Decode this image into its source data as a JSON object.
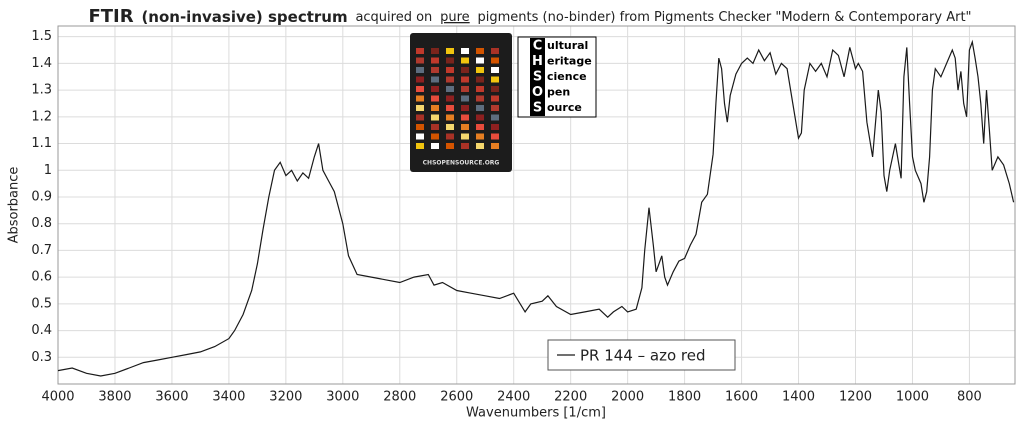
{
  "chart_data": {
    "type": "line",
    "title": [
      "FTIR",
      "(non-invasive) spectrum",
      "acquired on",
      "pure",
      "pigments (no-binder) from Pigments Checker \"Modern & Contemporary Art\""
    ],
    "xlabel": "Wavenumbers [1/cm]",
    "ylabel": "Absorbance",
    "logo": {
      "letters": [
        "C",
        "H",
        "S",
        "O",
        "S"
      ],
      "words": [
        "ultural",
        "eritage",
        "cience",
        "pen",
        "ource"
      ],
      "card": "CHSOPENSOURCE.ORG"
    },
    "xlim": [
      4000,
      640
    ],
    "ylim": [
      0.2,
      1.54
    ],
    "xticks": [
      4000,
      3800,
      3600,
      3400,
      3200,
      3000,
      2800,
      2600,
      2400,
      2200,
      2000,
      1800,
      1600,
      1400,
      1200,
      1000,
      800
    ],
    "yticks": [
      0.3,
      0.4,
      0.5,
      0.6,
      0.7,
      0.8,
      0.9,
      1,
      1.1,
      1.2,
      1.3,
      1.4,
      1.5
    ],
    "grid": true,
    "x": [
      4000,
      3950,
      3900,
      3850,
      3800,
      3750,
      3700,
      3650,
      3600,
      3550,
      3500,
      3450,
      3400,
      3380,
      3350,
      3320,
      3300,
      3280,
      3260,
      3240,
      3220,
      3200,
      3180,
      3160,
      3140,
      3120,
      3100,
      3085,
      3070,
      3050,
      3030,
      3000,
      2980,
      2950,
      2900,
      2850,
      2800,
      2750,
      2700,
      2680,
      2650,
      2600,
      2550,
      2500,
      2450,
      2400,
      2360,
      2340,
      2300,
      2280,
      2250,
      2200,
      2150,
      2100,
      2070,
      2050,
      2020,
      2000,
      1970,
      1950,
      1940,
      1925,
      1910,
      1900,
      1890,
      1880,
      1870,
      1860,
      1840,
      1820,
      1800,
      1780,
      1760,
      1740,
      1720,
      1700,
      1690,
      1680,
      1670,
      1660,
      1650,
      1640,
      1620,
      1600,
      1580,
      1560,
      1540,
      1520,
      1500,
      1480,
      1460,
      1440,
      1420,
      1400,
      1390,
      1380,
      1360,
      1340,
      1320,
      1300,
      1280,
      1260,
      1240,
      1220,
      1200,
      1190,
      1175,
      1160,
      1140,
      1120,
      1110,
      1100,
      1090,
      1080,
      1060,
      1040,
      1030,
      1020,
      1010,
      1000,
      990,
      970,
      960,
      950,
      940,
      930,
      920,
      900,
      880,
      860,
      850,
      840,
      830,
      820,
      810,
      800,
      790,
      780,
      770,
      760,
      750,
      740,
      730,
      720,
      700,
      680,
      660,
      645
    ],
    "series": [
      {
        "name": "PR 144 – azo red",
        "color": "#1a1a1a",
        "values": [
          0.25,
          0.26,
          0.24,
          0.23,
          0.24,
          0.26,
          0.28,
          0.29,
          0.3,
          0.31,
          0.32,
          0.34,
          0.37,
          0.4,
          0.46,
          0.55,
          0.65,
          0.78,
          0.9,
          1.0,
          1.03,
          0.98,
          1.0,
          0.96,
          0.99,
          0.97,
          1.05,
          1.1,
          1.0,
          0.96,
          0.92,
          0.8,
          0.68,
          0.61,
          0.6,
          0.59,
          0.58,
          0.6,
          0.61,
          0.57,
          0.58,
          0.55,
          0.54,
          0.53,
          0.52,
          0.54,
          0.47,
          0.5,
          0.51,
          0.53,
          0.49,
          0.46,
          0.47,
          0.48,
          0.45,
          0.47,
          0.49,
          0.47,
          0.48,
          0.56,
          0.7,
          0.86,
          0.72,
          0.62,
          0.65,
          0.68,
          0.6,
          0.57,
          0.62,
          0.66,
          0.67,
          0.72,
          0.76,
          0.88,
          0.91,
          1.06,
          1.25,
          1.42,
          1.38,
          1.25,
          1.18,
          1.28,
          1.36,
          1.4,
          1.42,
          1.4,
          1.45,
          1.41,
          1.44,
          1.36,
          1.4,
          1.38,
          1.25,
          1.12,
          1.14,
          1.3,
          1.4,
          1.37,
          1.4,
          1.35,
          1.45,
          1.43,
          1.35,
          1.46,
          1.38,
          1.4,
          1.37,
          1.18,
          1.05,
          1.3,
          1.22,
          0.98,
          0.92,
          1.0,
          1.1,
          0.97,
          1.35,
          1.46,
          1.25,
          1.05,
          1.0,
          0.95,
          0.88,
          0.92,
          1.05,
          1.3,
          1.38,
          1.35,
          1.4,
          1.45,
          1.42,
          1.3,
          1.37,
          1.25,
          1.2,
          1.45,
          1.48,
          1.42,
          1.35,
          1.25,
          1.1,
          1.3,
          1.15,
          1.0,
          1.05,
          1.02,
          0.95,
          0.88
        ]
      }
    ]
  }
}
